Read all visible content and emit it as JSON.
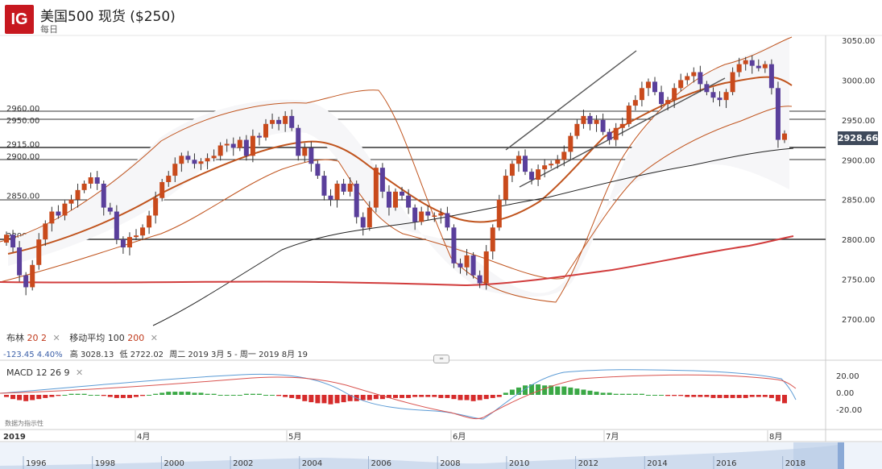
{
  "header": {
    "logo": "IG",
    "title": "美国500 现货 ($250)",
    "subtitle": "每日"
  },
  "price_axis": {
    "ticks": [
      "3050.00",
      "3000.00",
      "2950.00",
      "2900.00",
      "2850.00",
      "2800.00",
      "2750.00",
      "2700.00"
    ],
    "last_price": "2928.66"
  },
  "levels": [
    "2960.00",
    "2950.00",
    "2915.00",
    "2900.00",
    "2850.00",
    "2800.00"
  ],
  "indicator_legend": {
    "bollinger_name": "布林",
    "bollinger_p1": "20",
    "bollinger_p2": "2",
    "ma_name": "移动平均",
    "ma_p1": "100",
    "ma_p2": "200",
    "close_icon": "close-icon"
  },
  "ohlc_info": {
    "change": "-123.45",
    "change_pct": "4.40%",
    "high_label": "高",
    "high": "3028.13",
    "low_label": "低",
    "low": "2722.02",
    "range": "周二 2019 3月 5 - 周一 2019 8月 19"
  },
  "macd": {
    "name": "MACD",
    "p1": "12",
    "p2": "26",
    "p3": "9",
    "ticks": [
      "20.00",
      "0.00",
      "-20.00"
    ],
    "note": "数据为指示性"
  },
  "time_axis": {
    "year": "2019",
    "months": [
      "4月",
      "5月",
      "6月",
      "7月",
      "8月"
    ]
  },
  "navigator": {
    "years": [
      "1996",
      "1998",
      "2000",
      "2002",
      "2004",
      "2006",
      "2008",
      "2010",
      "2012",
      "2014",
      "2016",
      "2018"
    ]
  },
  "colors": {
    "up": "#c94a1c",
    "down": "#5a3f9b",
    "bollinger": "#c0541e",
    "ma100": "#222222",
    "ma200": "#d13c3c",
    "macd_line": "#5b9bd5",
    "signal_line": "#d9534f"
  }
}
